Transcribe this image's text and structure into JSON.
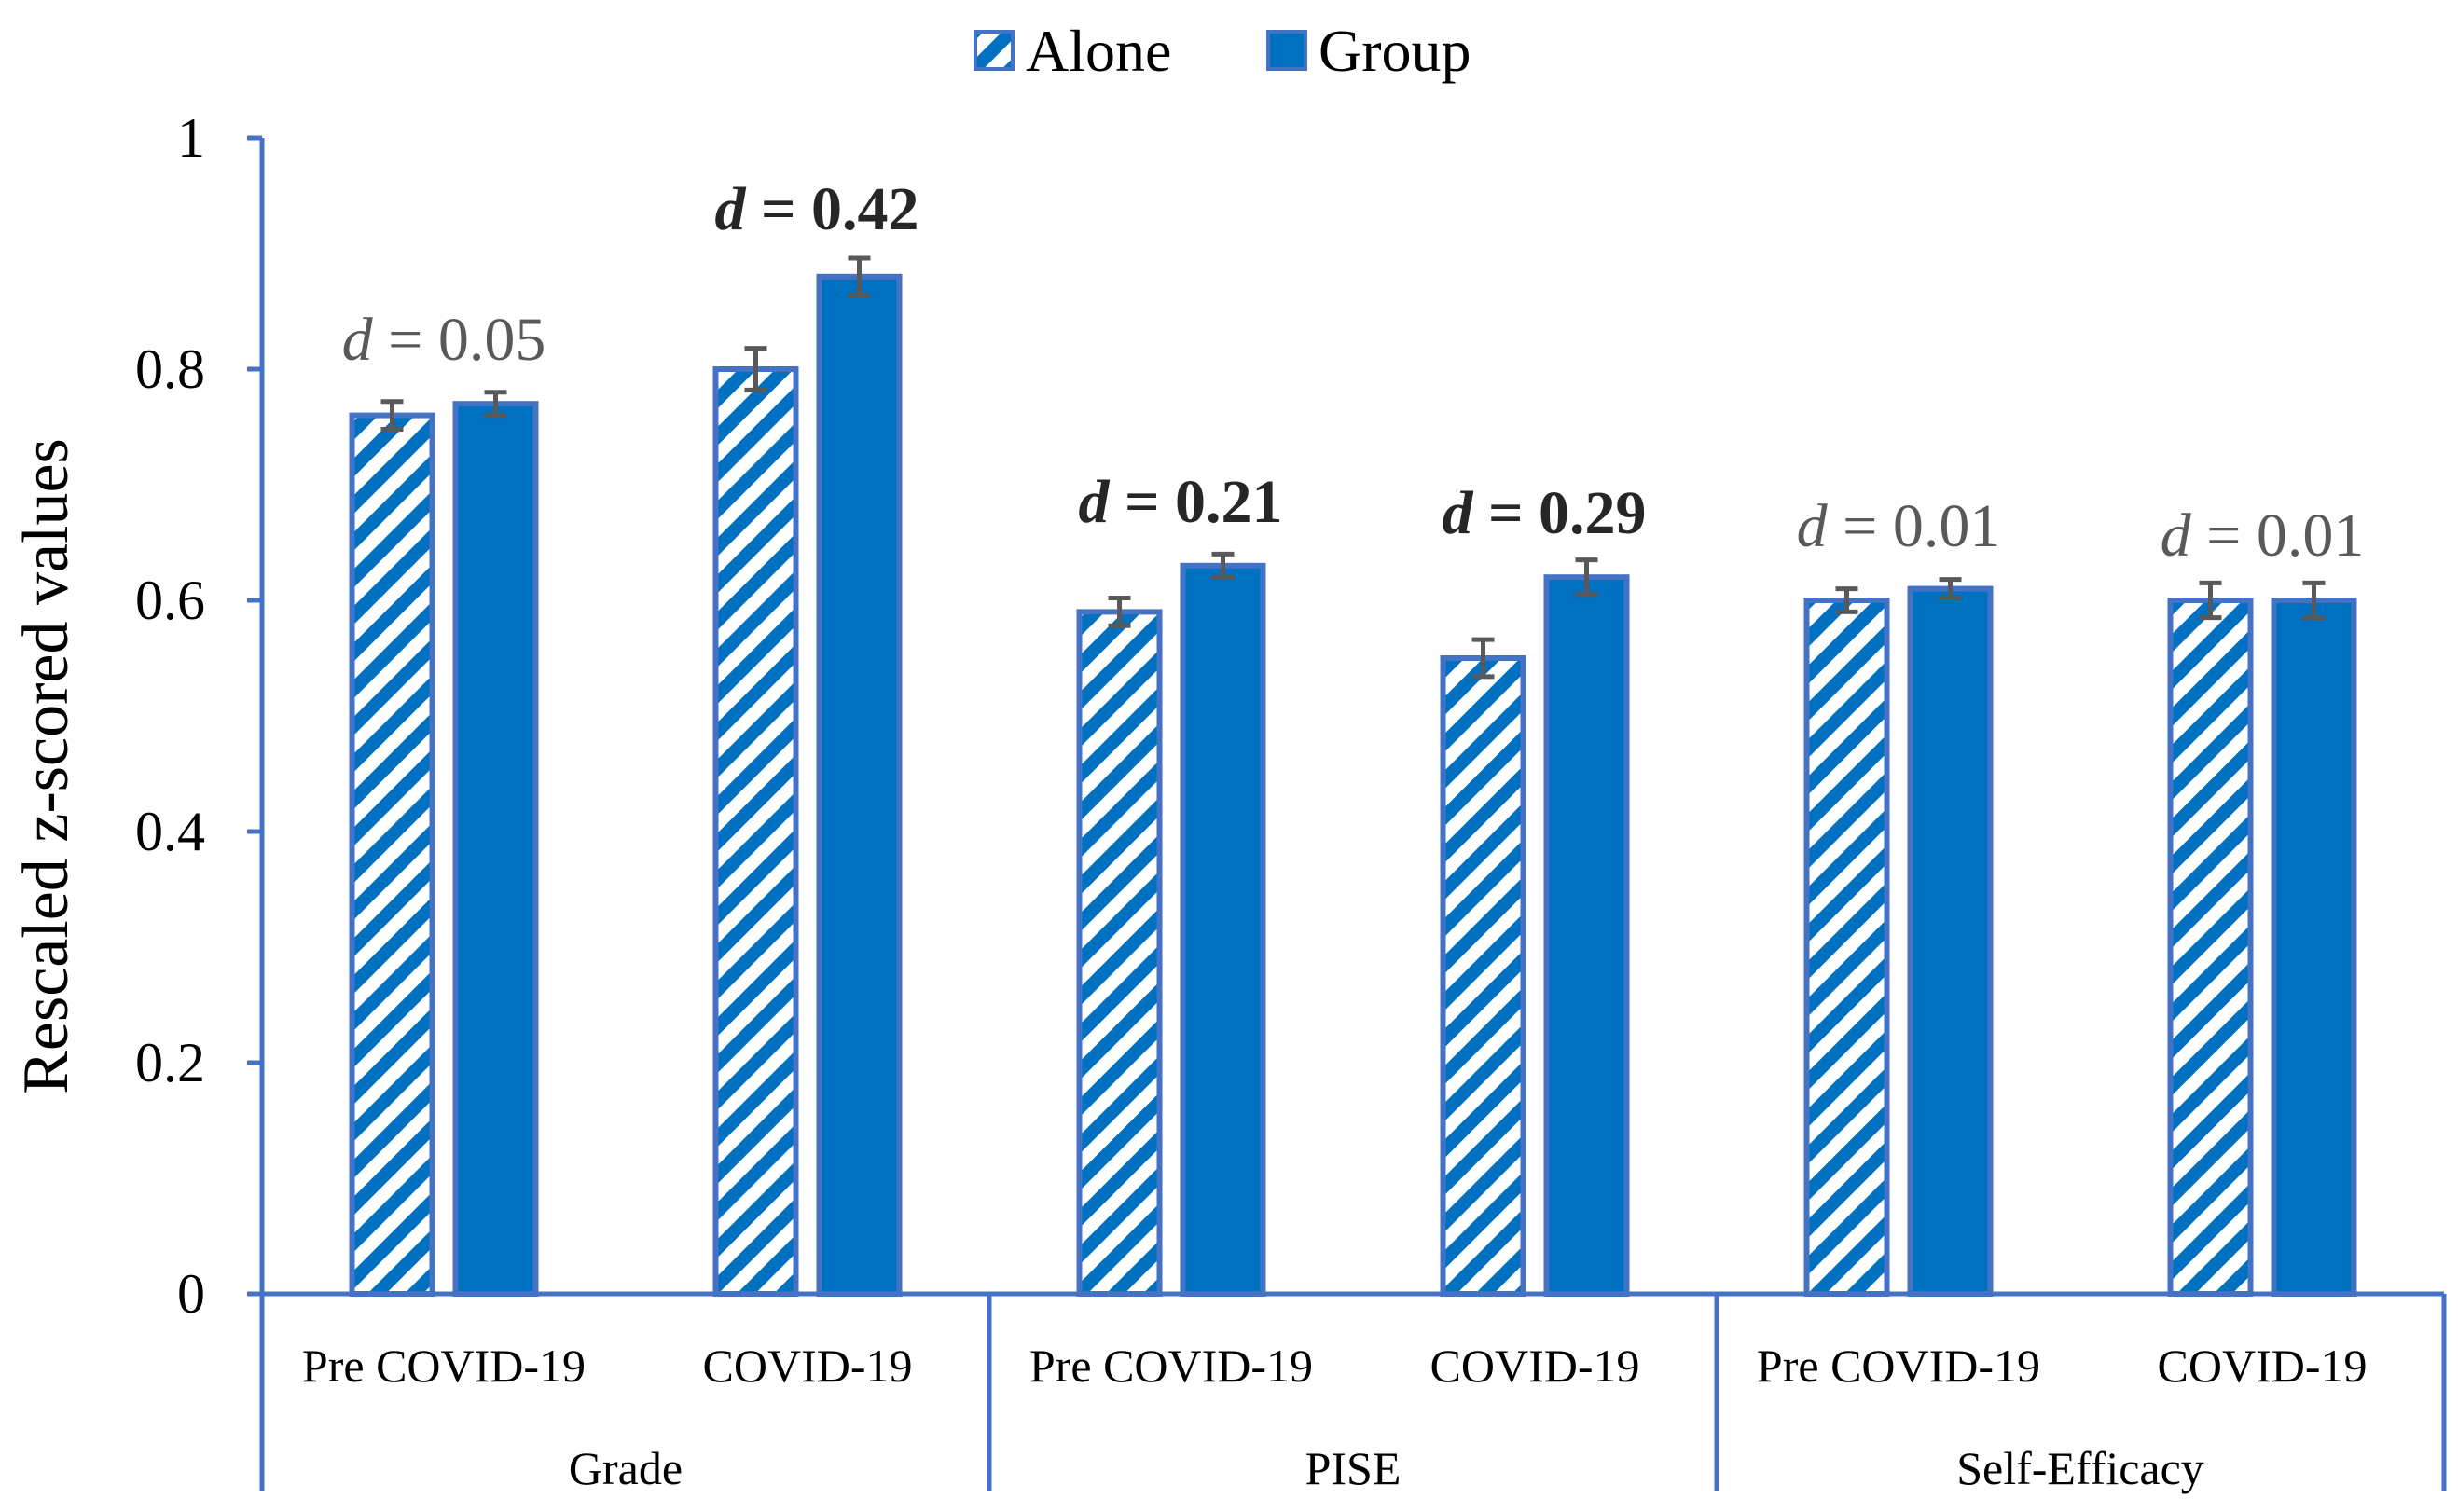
{
  "chart_data": {
    "type": "bar",
    "title": "",
    "xlabel": "",
    "ylabel": "Rescaled z-scored values",
    "ylim": [
      0,
      1
    ],
    "yticks": [
      "0",
      "0.2",
      "0.4",
      "0.6",
      "0.8",
      "1"
    ],
    "legend_position": "top-center",
    "groups": [
      {
        "label": "Grade",
        "categories": [
          "Pre COVID-19",
          "COVID-19"
        ]
      },
      {
        "label": "PISE",
        "categories": [
          "Pre COVID-19",
          "COVID-19"
        ]
      },
      {
        "label": "Self-Efficacy",
        "categories": [
          "Pre COVID-19",
          "COVID-19"
        ]
      }
    ],
    "categories": [
      "Pre COVID-19",
      "COVID-19",
      "Pre COVID-19",
      "COVID-19",
      "Pre COVID-19",
      "COVID-19"
    ],
    "series": [
      {
        "name": "Alone",
        "pattern": "hatched",
        "values": [
          0.76,
          0.8,
          0.59,
          0.55,
          0.6,
          0.6
        ],
        "errors": [
          0.012,
          0.018,
          0.012,
          0.016,
          0.01,
          0.015
        ]
      },
      {
        "name": "Group",
        "pattern": "solid",
        "values": [
          0.77,
          0.88,
          0.63,
          0.62,
          0.61,
          0.6
        ],
        "errors": [
          0.01,
          0.016,
          0.01,
          0.015,
          0.008,
          0.015
        ]
      }
    ],
    "annotations": [
      {
        "d": "d",
        "eq": " = ",
        "value": "0.05",
        "bold": false
      },
      {
        "d": "d",
        "eq": " = ",
        "value": "0.42",
        "bold": true
      },
      {
        "d": "d",
        "eq": " = ",
        "value": "0.21",
        "bold": true
      },
      {
        "d": "d",
        "eq": " = ",
        "value": "0.29",
        "bold": true
      },
      {
        "d": "d",
        "eq": " = ",
        "value": "0.01",
        "bold": false
      },
      {
        "d": "d",
        "eq": " = ",
        "value": "0.01",
        "bold": false
      }
    ]
  },
  "colors": {
    "bar_fill": "#0070c0",
    "bar_stroke": "#4472c4",
    "hatch_bg": "#ffffff",
    "axis": "#4472c4",
    "error": "#595959"
  }
}
